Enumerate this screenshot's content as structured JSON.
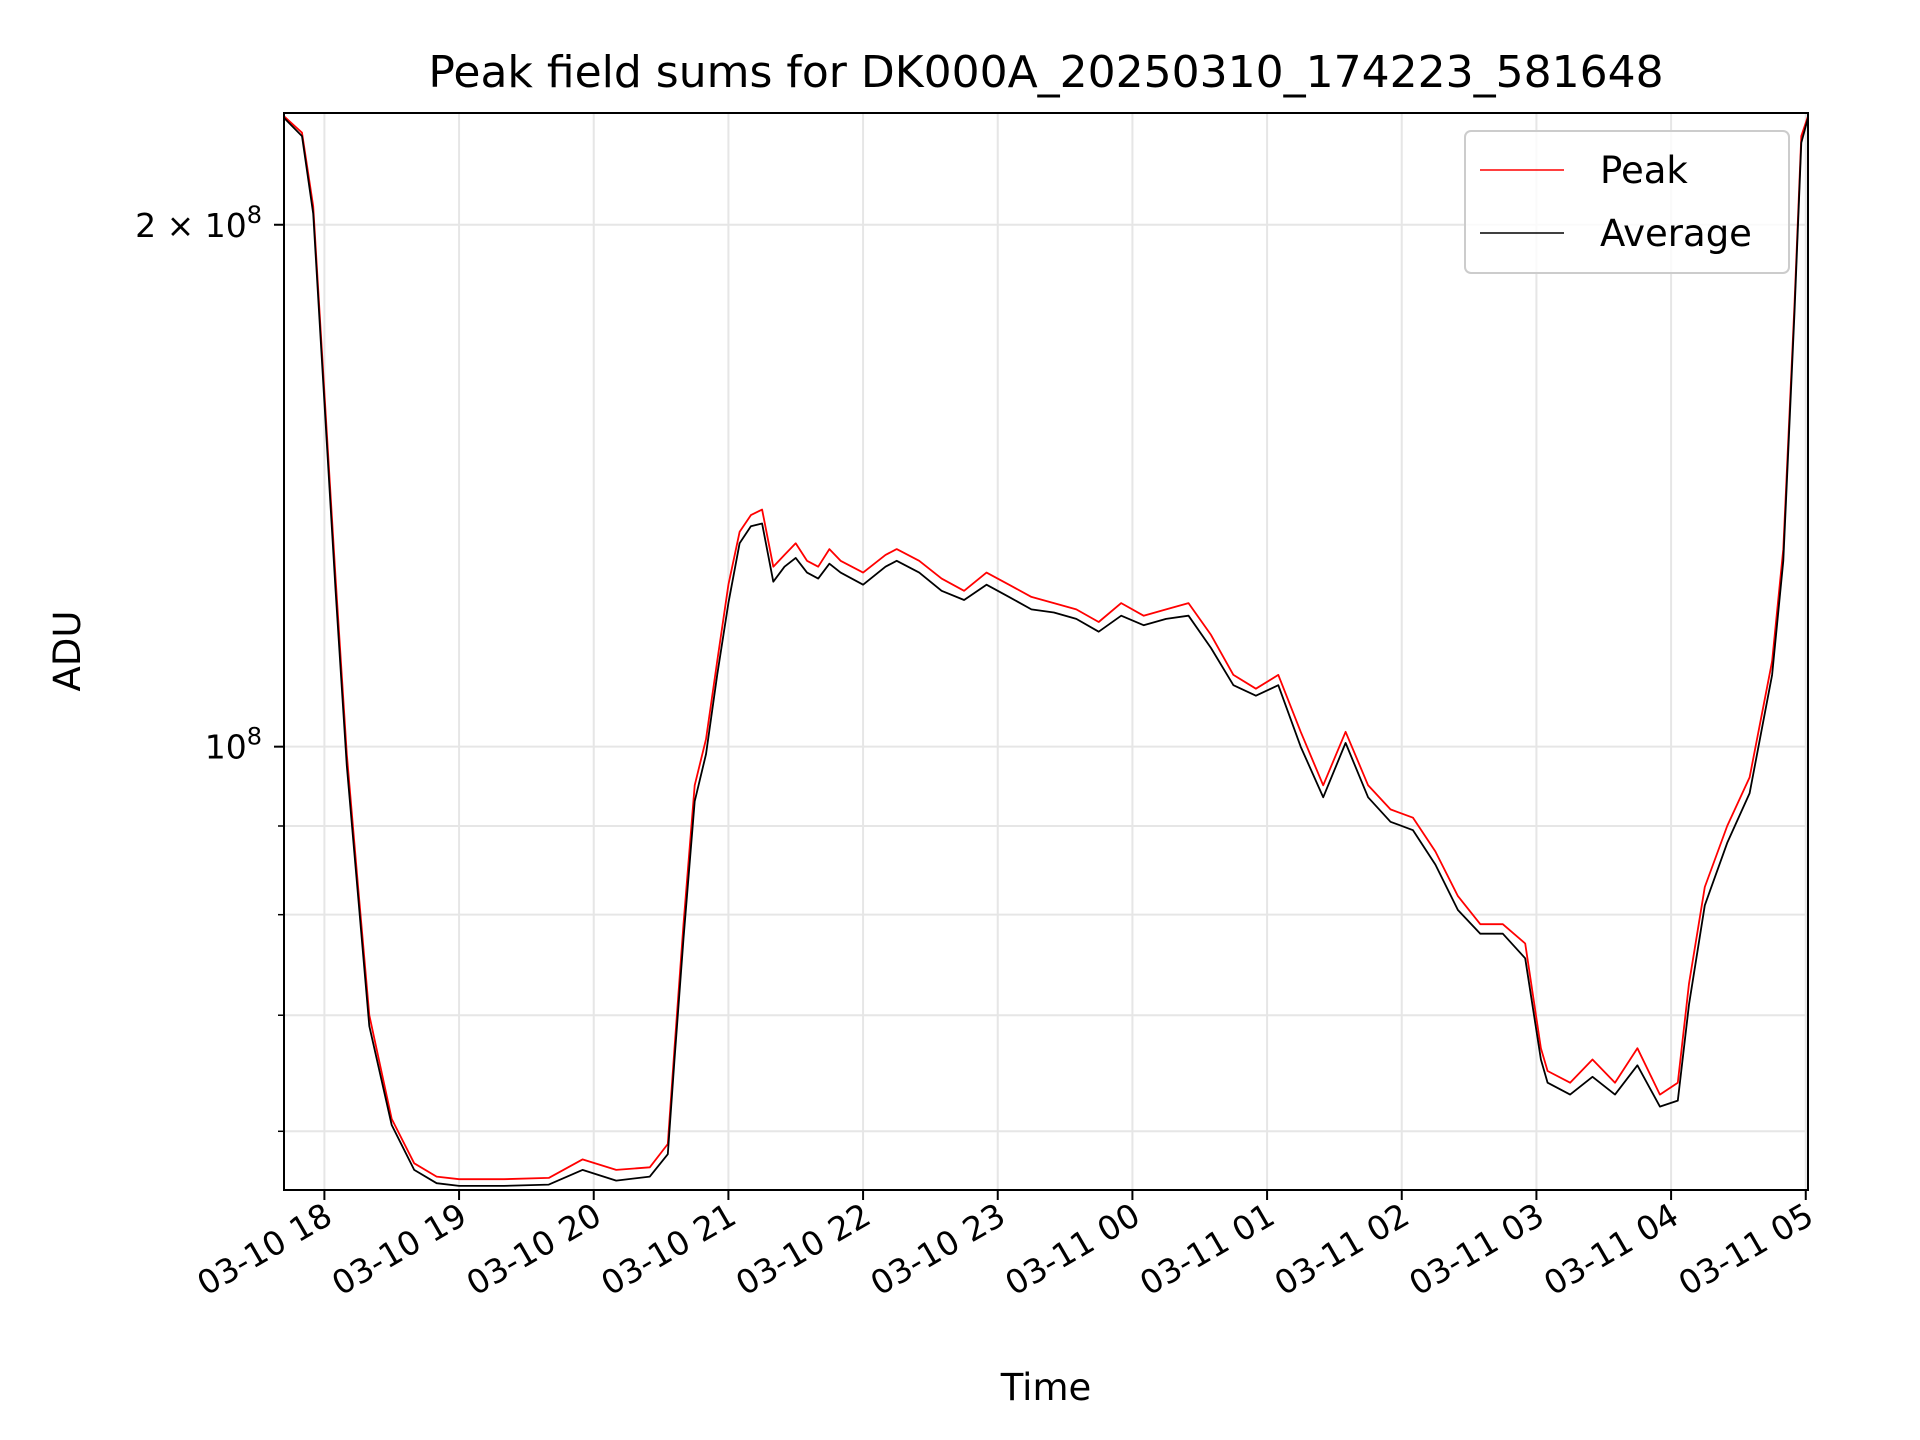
{
  "chart_data": {
    "type": "line",
    "title": "Peak field sums for DK000A_20250310_174223_581648",
    "xlabel": "Time",
    "ylabel": "ADU",
    "yscale": "log",
    "grid": true,
    "legend_position": "upper right",
    "xlim": [
      "2025-03-10 17:42",
      "2025-03-11 05:01"
    ],
    "ylim": [
      55500000,
      232000000
    ],
    "x_tick_labels": [
      "03-10 18",
      "03-10 19",
      "03-10 20",
      "03-10 21",
      "03-10 22",
      "03-10 23",
      "03-11 00",
      "03-11 01",
      "03-11 02",
      "03-11 03",
      "03-11 04",
      "03-11 05"
    ],
    "y_major_ticks": [
      {
        "value": 100000000,
        "label_base": "10",
        "label_exp": "8"
      },
      {
        "value": 200000000,
        "label_base": "2 × 10",
        "label_exp": "8"
      }
    ],
    "y_minor_ticks": [
      60000000,
      70000000,
      80000000,
      90000000
    ],
    "series": [
      {
        "name": "Peak",
        "color": "#ff0000",
        "x": [
          "2025-03-10 17:42",
          "2025-03-10 17:50",
          "2025-03-10 17:55",
          "2025-03-10 18:00",
          "2025-03-10 18:05",
          "2025-03-10 18:10",
          "2025-03-10 18:15",
          "2025-03-10 18:20",
          "2025-03-10 18:30",
          "2025-03-10 18:40",
          "2025-03-10 18:50",
          "2025-03-10 19:00",
          "2025-03-10 19:20",
          "2025-03-10 19:40",
          "2025-03-10 19:55",
          "2025-03-10 20:10",
          "2025-03-10 20:25",
          "2025-03-10 20:33",
          "2025-03-10 20:36",
          "2025-03-10 20:40",
          "2025-03-10 20:45",
          "2025-03-10 20:50",
          "2025-03-10 20:55",
          "2025-03-10 21:00",
          "2025-03-10 21:05",
          "2025-03-10 21:10",
          "2025-03-10 21:15",
          "2025-03-10 21:20",
          "2025-03-10 21:25",
          "2025-03-10 21:30",
          "2025-03-10 21:35",
          "2025-03-10 21:40",
          "2025-03-10 21:45",
          "2025-03-10 21:50",
          "2025-03-10 22:00",
          "2025-03-10 22:10",
          "2025-03-10 22:15",
          "2025-03-10 22:25",
          "2025-03-10 22:35",
          "2025-03-10 22:45",
          "2025-03-10 22:55",
          "2025-03-10 23:05",
          "2025-03-10 23:15",
          "2025-03-10 23:25",
          "2025-03-10 23:35",
          "2025-03-10 23:45",
          "2025-03-10 23:55",
          "2025-03-11 00:05",
          "2025-03-11 00:15",
          "2025-03-11 00:25",
          "2025-03-11 00:35",
          "2025-03-11 00:45",
          "2025-03-11 00:55",
          "2025-03-11 01:05",
          "2025-03-11 01:15",
          "2025-03-11 01:25",
          "2025-03-11 01:35",
          "2025-03-11 01:45",
          "2025-03-11 01:55",
          "2025-03-11 02:05",
          "2025-03-11 02:15",
          "2025-03-11 02:25",
          "2025-03-11 02:35",
          "2025-03-11 02:45",
          "2025-03-11 02:55",
          "2025-03-11 03:02",
          "2025-03-11 03:05",
          "2025-03-11 03:15",
          "2025-03-11 03:25",
          "2025-03-11 03:35",
          "2025-03-11 03:45",
          "2025-03-11 03:55",
          "2025-03-11 04:03",
          "2025-03-11 04:08",
          "2025-03-11 04:15",
          "2025-03-11 04:25",
          "2025-03-11 04:35",
          "2025-03-11 04:45",
          "2025-03-11 04:50",
          "2025-03-11 04:55",
          "2025-03-11 04:58",
          "2025-03-11 05:01"
        ],
        "y": [
          231000000,
          226000000,
          205000000,
          160000000,
          125000000,
          99000000,
          83000000,
          70000000,
          61000000,
          57500000,
          56500000,
          56300000,
          56300000,
          56400000,
          57800000,
          57000000,
          57200000,
          59000000,
          67000000,
          79000000,
          95000000,
          101000000,
          112000000,
          124000000,
          133000000,
          136000000,
          137000000,
          127000000,
          129000000,
          131000000,
          128000000,
          127000000,
          130000000,
          128000000,
          126000000,
          129000000,
          130000000,
          128000000,
          125000000,
          123000000,
          126000000,
          124000000,
          122000000,
          121000000,
          120000000,
          118000000,
          121000000,
          119000000,
          120000000,
          121000000,
          116000000,
          110000000,
          108000000,
          110000000,
          102000000,
          95000000,
          102000000,
          95000000,
          92000000,
          91000000,
          87000000,
          82000000,
          79000000,
          79000000,
          77000000,
          67000000,
          65000000,
          64000000,
          66000000,
          64000000,
          67000000,
          63000000,
          64000000,
          73000000,
          83000000,
          90000000,
          96000000,
          112000000,
          130000000,
          180000000,
          225000000,
          231000000
        ]
      },
      {
        "name": "Average",
        "color": "#000000",
        "x": [
          "2025-03-10 17:42",
          "2025-03-10 17:50",
          "2025-03-10 17:55",
          "2025-03-10 18:00",
          "2025-03-10 18:05",
          "2025-03-10 18:10",
          "2025-03-10 18:15",
          "2025-03-10 18:20",
          "2025-03-10 18:30",
          "2025-03-10 18:40",
          "2025-03-10 18:50",
          "2025-03-10 19:00",
          "2025-03-10 19:20",
          "2025-03-10 19:40",
          "2025-03-10 19:55",
          "2025-03-10 20:10",
          "2025-03-10 20:25",
          "2025-03-10 20:33",
          "2025-03-10 20:36",
          "2025-03-10 20:40",
          "2025-03-10 20:45",
          "2025-03-10 20:50",
          "2025-03-10 20:55",
          "2025-03-10 21:00",
          "2025-03-10 21:05",
          "2025-03-10 21:10",
          "2025-03-10 21:15",
          "2025-03-10 21:20",
          "2025-03-10 21:25",
          "2025-03-10 21:30",
          "2025-03-10 21:35",
          "2025-03-10 21:40",
          "2025-03-10 21:45",
          "2025-03-10 21:50",
          "2025-03-10 22:00",
          "2025-03-10 22:10",
          "2025-03-10 22:15",
          "2025-03-10 22:25",
          "2025-03-10 22:35",
          "2025-03-10 22:45",
          "2025-03-10 22:55",
          "2025-03-10 23:05",
          "2025-03-10 23:15",
          "2025-03-10 23:25",
          "2025-03-10 23:35",
          "2025-03-10 23:45",
          "2025-03-10 23:55",
          "2025-03-11 00:05",
          "2025-03-11 00:15",
          "2025-03-11 00:25",
          "2025-03-11 00:35",
          "2025-03-11 00:45",
          "2025-03-11 00:55",
          "2025-03-11 01:05",
          "2025-03-11 01:15",
          "2025-03-11 01:25",
          "2025-03-11 01:35",
          "2025-03-11 01:45",
          "2025-03-11 01:55",
          "2025-03-11 02:05",
          "2025-03-11 02:15",
          "2025-03-11 02:25",
          "2025-03-11 02:35",
          "2025-03-11 02:45",
          "2025-03-11 02:55",
          "2025-03-11 03:02",
          "2025-03-11 03:05",
          "2025-03-11 03:15",
          "2025-03-11 03:25",
          "2025-03-11 03:35",
          "2025-03-11 03:45",
          "2025-03-11 03:55",
          "2025-03-11 04:03",
          "2025-03-11 04:08",
          "2025-03-11 04:15",
          "2025-03-11 04:25",
          "2025-03-11 04:35",
          "2025-03-11 04:45",
          "2025-03-11 04:50",
          "2025-03-11 04:55",
          "2025-03-11 04:58",
          "2025-03-11 05:01"
        ],
        "y": [
          230500000,
          225000000,
          203000000,
          158000000,
          123000000,
          97500000,
          82000000,
          69000000,
          60500000,
          57000000,
          56000000,
          55800000,
          55800000,
          55900000,
          57000000,
          56200000,
          56500000,
          58200000,
          66000000,
          77500000,
          93000000,
          99000000,
          110000000,
          121000000,
          131000000,
          134000000,
          134500000,
          124500000,
          127000000,
          128500000,
          126000000,
          125000000,
          127500000,
          126000000,
          124000000,
          127000000,
          128000000,
          126000000,
          123000000,
          121500000,
          124000000,
          122000000,
          120000000,
          119500000,
          118500000,
          116500000,
          119000000,
          117500000,
          118500000,
          119000000,
          114000000,
          108500000,
          107000000,
          108500000,
          100000000,
          93500000,
          100500000,
          93500000,
          90500000,
          89500000,
          85500000,
          80500000,
          78000000,
          78000000,
          75500000,
          66000000,
          64000000,
          63000000,
          64500000,
          63000000,
          65500000,
          62000000,
          62500000,
          71000000,
          81000000,
          88000000,
          94000000,
          110000000,
          128000000,
          178000000,
          223000000,
          230500000
        ]
      }
    ]
  }
}
